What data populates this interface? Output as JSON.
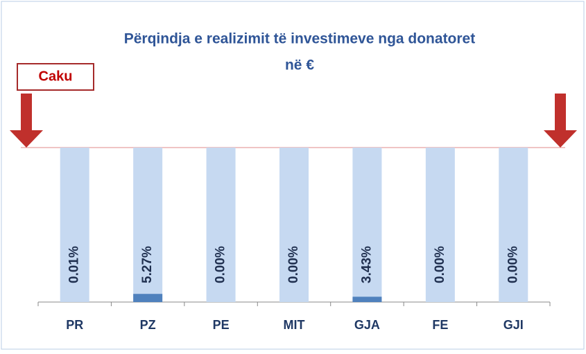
{
  "chart_data": {
    "type": "bar",
    "title": [
      "Përqindja e realizimit të investimeve nga donatoret",
      "në €"
    ],
    "categories": [
      "PR",
      "PZ",
      "PE",
      "MIT",
      "GJA",
      "FE",
      "GJI"
    ],
    "values": [
      0.01,
      5.27,
      0.0,
      0.0,
      3.43,
      0.0,
      0.0
    ],
    "value_labels": [
      "0.01%",
      "5.27%",
      "0.00%",
      "0.00%",
      "3.43%",
      "0.00%",
      "0.00%"
    ],
    "color": "#4f81bd",
    "target": {
      "label": "Caku",
      "value": 100,
      "color": "#c6d9f1"
    },
    "ylim": [
      0,
      100
    ]
  }
}
